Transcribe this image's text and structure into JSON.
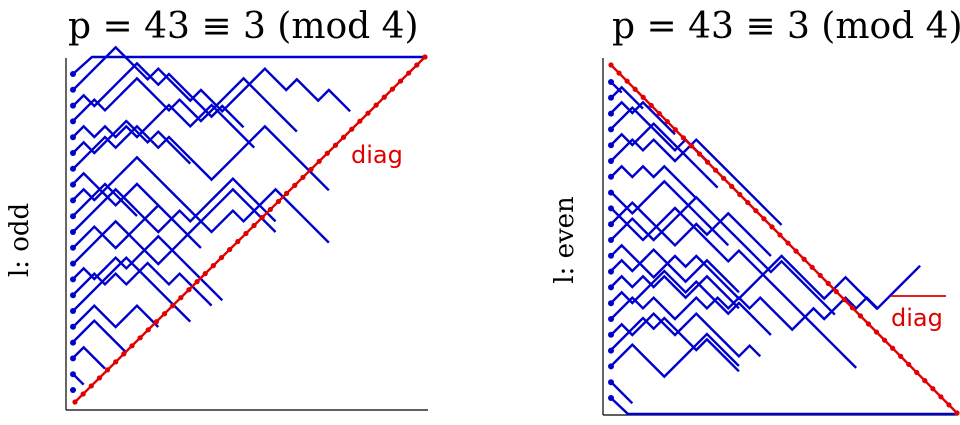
{
  "left_panel": {
    "title": "p = 43 ≡ 3 (mod 4)",
    "side_label": "l: odd",
    "diag_label": "diag"
  },
  "right_panel": {
    "title": "p = 43 ≡ 3 (mod 4)",
    "side_label": "l: even",
    "diag_label": "diag"
  },
  "colors": {
    "paths": "#0000cc",
    "diagonal": "#e00000",
    "axes": "#000000"
  }
}
